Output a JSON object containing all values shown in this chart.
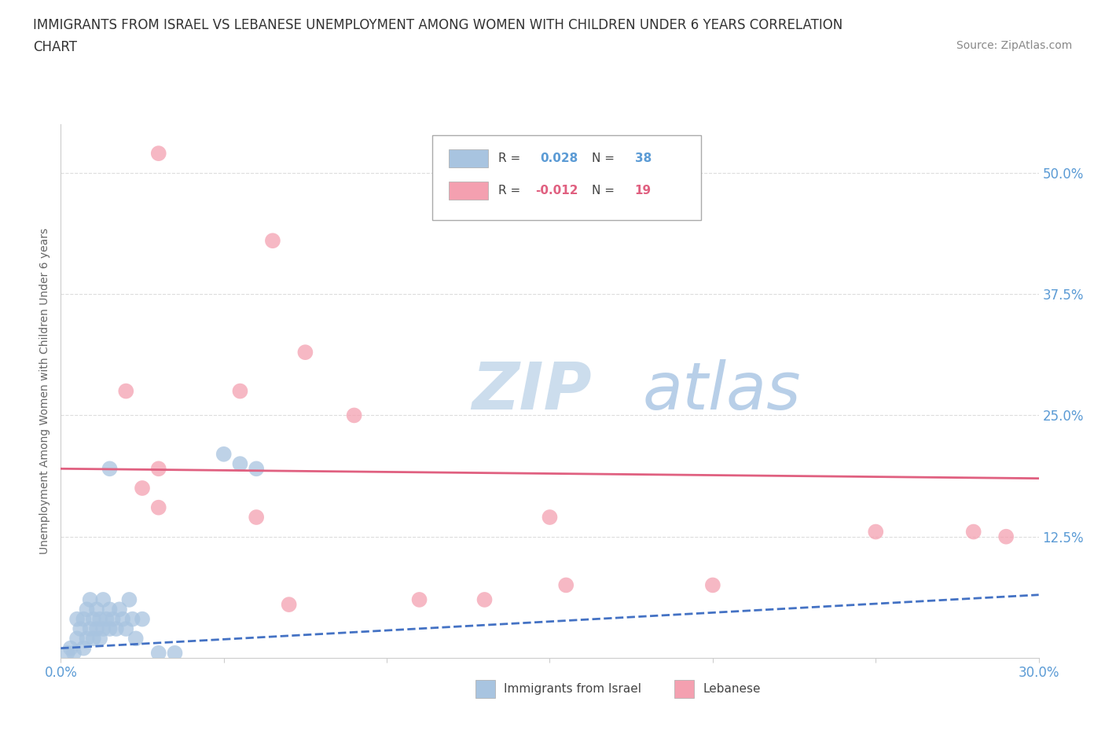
{
  "title_line1": "IMMIGRANTS FROM ISRAEL VS LEBANESE UNEMPLOYMENT AMONG WOMEN WITH CHILDREN UNDER 6 YEARS CORRELATION",
  "title_line2": "CHART",
  "source": "Source: ZipAtlas.com",
  "ylabel": "Unemployment Among Women with Children Under 6 years",
  "xlim": [
    0.0,
    0.3
  ],
  "ylim": [
    0.0,
    0.55
  ],
  "ytick_labels": [
    "12.5%",
    "25.0%",
    "37.5%",
    "50.0%"
  ],
  "ytick_positions": [
    0.125,
    0.25,
    0.375,
    0.5
  ],
  "legend_blue_R": "0.028",
  "legend_blue_N": "38",
  "legend_pink_R": "-0.012",
  "legend_pink_N": "19",
  "legend_labels": [
    "Immigrants from Israel",
    "Lebanese"
  ],
  "blue_color": "#a8c4e0",
  "pink_color": "#f4a0b0",
  "blue_line_color": "#4472c4",
  "pink_line_color": "#e06080",
  "blue_scatter": [
    [
      0.002,
      0.005
    ],
    [
      0.003,
      0.01
    ],
    [
      0.004,
      0.005
    ],
    [
      0.005,
      0.02
    ],
    [
      0.005,
      0.04
    ],
    [
      0.006,
      0.03
    ],
    [
      0.007,
      0.01
    ],
    [
      0.007,
      0.04
    ],
    [
      0.008,
      0.02
    ],
    [
      0.008,
      0.05
    ],
    [
      0.009,
      0.03
    ],
    [
      0.009,
      0.06
    ],
    [
      0.01,
      0.04
    ],
    [
      0.01,
      0.02
    ],
    [
      0.011,
      0.03
    ],
    [
      0.011,
      0.05
    ],
    [
      0.012,
      0.04
    ],
    [
      0.012,
      0.02
    ],
    [
      0.013,
      0.06
    ],
    [
      0.013,
      0.03
    ],
    [
      0.014,
      0.04
    ],
    [
      0.015,
      0.05
    ],
    [
      0.015,
      0.03
    ],
    [
      0.016,
      0.04
    ],
    [
      0.017,
      0.03
    ],
    [
      0.018,
      0.05
    ],
    [
      0.019,
      0.04
    ],
    [
      0.02,
      0.03
    ],
    [
      0.021,
      0.06
    ],
    [
      0.022,
      0.04
    ],
    [
      0.023,
      0.02
    ],
    [
      0.025,
      0.04
    ],
    [
      0.03,
      0.005
    ],
    [
      0.035,
      0.005
    ],
    [
      0.05,
      0.21
    ],
    [
      0.055,
      0.2
    ],
    [
      0.06,
      0.195
    ],
    [
      0.015,
      0.195
    ]
  ],
  "pink_scatter": [
    [
      0.03,
      0.52
    ],
    [
      0.065,
      0.43
    ],
    [
      0.075,
      0.315
    ],
    [
      0.055,
      0.275
    ],
    [
      0.02,
      0.275
    ],
    [
      0.03,
      0.195
    ],
    [
      0.025,
      0.175
    ],
    [
      0.03,
      0.155
    ],
    [
      0.09,
      0.25
    ],
    [
      0.15,
      0.145
    ],
    [
      0.2,
      0.075
    ],
    [
      0.25,
      0.13
    ],
    [
      0.28,
      0.13
    ],
    [
      0.29,
      0.125
    ],
    [
      0.13,
      0.06
    ],
    [
      0.07,
      0.055
    ],
    [
      0.11,
      0.06
    ],
    [
      0.155,
      0.075
    ],
    [
      0.06,
      0.145
    ]
  ],
  "blue_trend_x": [
    0.0,
    0.3
  ],
  "blue_trend_y": [
    0.01,
    0.065
  ],
  "pink_trend_x": [
    0.0,
    0.3
  ],
  "pink_trend_y": [
    0.195,
    0.185
  ],
  "background_color": "#ffffff",
  "grid_color": "#dddddd",
  "title_color": "#333333",
  "axis_label_color": "#5b9bd5",
  "source_color": "#888888"
}
